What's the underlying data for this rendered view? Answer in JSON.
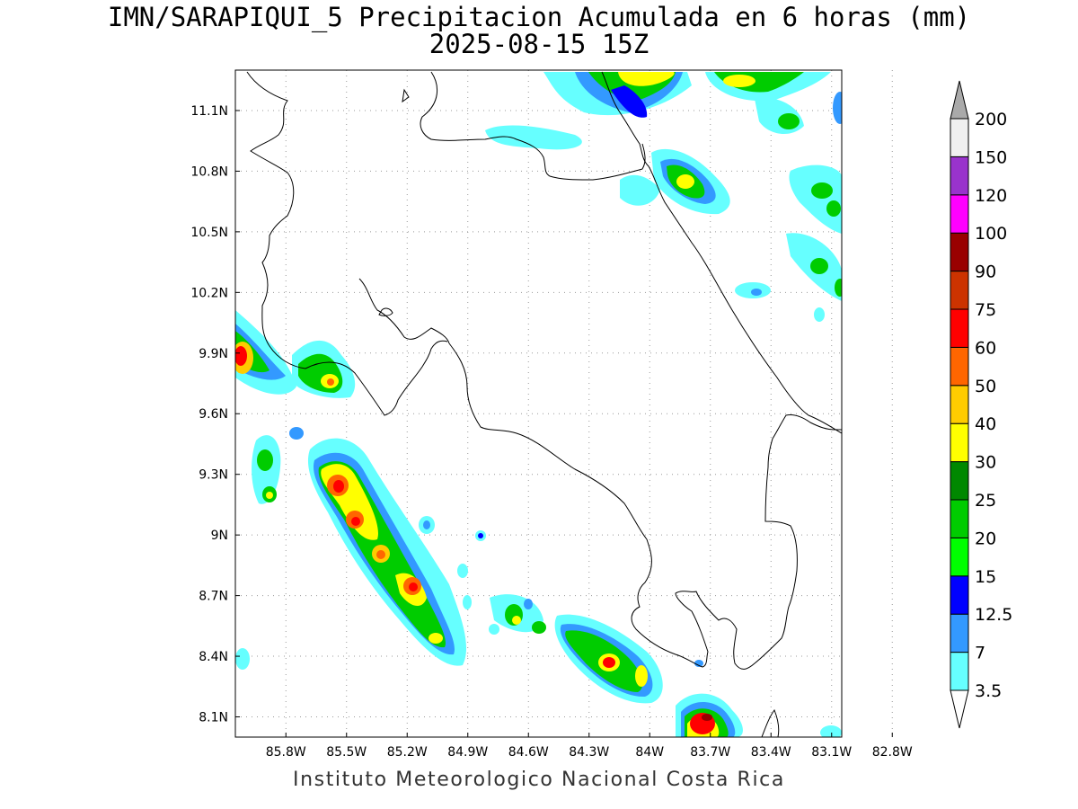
{
  "title": {
    "line1": "IMN/SARAPIQUI_5 Precipitacion Acumulada en 6 horas (mm)",
    "line2": "2025-08-15 15Z"
  },
  "footer": "Instituto Meteorologico Nacional Costa Rica",
  "map": {
    "projection": "lat-lon",
    "lon_range": [
      -86.05,
      -83.05
    ],
    "lat_range": [
      8.0,
      11.3
    ],
    "lon_ticks": [
      {
        "value": -85.8,
        "label": "85.8W"
      },
      {
        "value": -85.5,
        "label": "85.5W"
      },
      {
        "value": -85.2,
        "label": "85.2W"
      },
      {
        "value": -84.9,
        "label": "84.9W"
      },
      {
        "value": -84.6,
        "label": "84.6W"
      },
      {
        "value": -84.3,
        "label": "84.3W"
      },
      {
        "value": -84.0,
        "label": "84W"
      },
      {
        "value": -83.7,
        "label": "83.7W"
      },
      {
        "value": -83.4,
        "label": "83.4W"
      },
      {
        "value": -83.1,
        "label": "83.1W"
      },
      {
        "value": -82.8,
        "label": "82.8W"
      }
    ],
    "lat_ticks": [
      {
        "value": 8.1,
        "label": "8.1N"
      },
      {
        "value": 8.4,
        "label": "8.4N"
      },
      {
        "value": 8.7,
        "label": "8.7N"
      },
      {
        "value": 9.0,
        "label": "9N"
      },
      {
        "value": 9.3,
        "label": "9.3N"
      },
      {
        "value": 9.6,
        "label": "9.6N"
      },
      {
        "value": 9.9,
        "label": "9.9N"
      },
      {
        "value": 10.2,
        "label": "10.2N"
      },
      {
        "value": 10.5,
        "label": "10.5N"
      },
      {
        "value": 10.8,
        "label": "10.8N"
      },
      {
        "value": 11.1,
        "label": "11.1N"
      }
    ],
    "grid": "dotted"
  },
  "legend": {
    "levels": [
      "3.5",
      "7",
      "12.5",
      "15",
      "20",
      "25",
      "30",
      "40",
      "50",
      "60",
      "75",
      "90",
      "100",
      "120",
      "150",
      "200"
    ],
    "colors": [
      "#66ffff",
      "#3399ff",
      "#0000ff",
      "#00ff00",
      "#00cc00",
      "#008800",
      "#ffff00",
      "#ffcc00",
      "#ff6600",
      "#ff0000",
      "#cc3300",
      "#990000",
      "#ff00ff",
      "#9933cc",
      "#f0f0f0"
    ],
    "arrow_colors": {
      "top": "#aaaaaa",
      "bottom": "#ffffff"
    }
  }
}
